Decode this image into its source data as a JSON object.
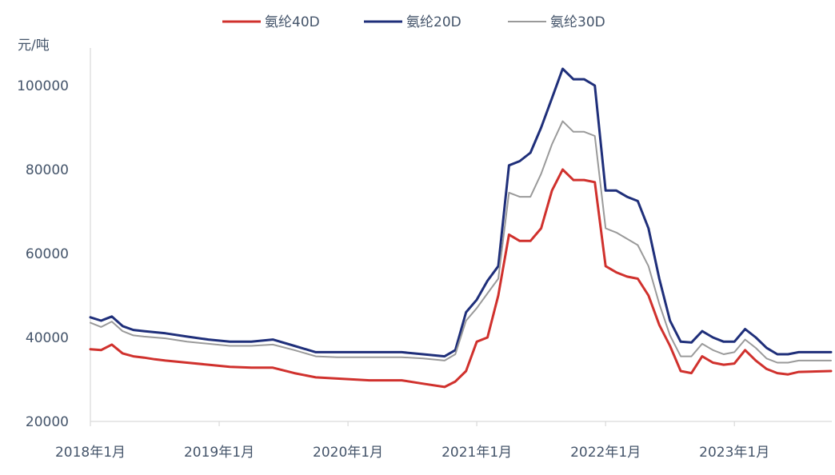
{
  "chart_data": {
    "type": "line",
    "title": "",
    "xlabel": "",
    "ylabel": "元/吨",
    "ylim": [
      20000,
      110000
    ],
    "xlim": [
      "2018-01",
      "2023-10"
    ],
    "y_ticks": [
      20000,
      40000,
      60000,
      80000,
      100000
    ],
    "y_tick_labels": [
      "20000",
      "40000",
      "60000",
      "80000",
      "100000"
    ],
    "x_ticks": [
      "2018-01",
      "2019-01",
      "2020-01",
      "2021-01",
      "2022-01",
      "2023-01"
    ],
    "x_tick_labels": [
      "2018年1月",
      "2019年1月",
      "2020年1月",
      "2021年1月",
      "2022年1月",
      "2023年1月"
    ],
    "grid": false,
    "legend_position": "top",
    "series": [
      {
        "name": "氨纶40D",
        "color": "#d0312d",
        "points": [
          [
            "2018-01",
            37200
          ],
          [
            "2018-02",
            37000
          ],
          [
            "2018-03",
            38300
          ],
          [
            "2018-04",
            36200
          ],
          [
            "2018-05",
            35500
          ],
          [
            "2018-06",
            35200
          ],
          [
            "2018-07",
            34800
          ],
          [
            "2018-08",
            34500
          ],
          [
            "2018-10",
            34000
          ],
          [
            "2018-12",
            33500
          ],
          [
            "2019-02",
            33000
          ],
          [
            "2019-04",
            32800
          ],
          [
            "2019-06",
            32800
          ],
          [
            "2019-08",
            31500
          ],
          [
            "2019-10",
            30500
          ],
          [
            "2019-12",
            30200
          ],
          [
            "2020-03",
            29800
          ],
          [
            "2020-06",
            29800
          ],
          [
            "2020-08",
            29000
          ],
          [
            "2020-10",
            28200
          ],
          [
            "2020-11",
            29500
          ],
          [
            "2020-12",
            32000
          ],
          [
            "2021-01",
            39000
          ],
          [
            "2021-02",
            40000
          ],
          [
            "2021-03",
            50000
          ],
          [
            "2021-04",
            64500
          ],
          [
            "2021-05",
            63000
          ],
          [
            "2021-06",
            63000
          ],
          [
            "2021-07",
            66000
          ],
          [
            "2021-08",
            75000
          ],
          [
            "2021-09",
            80000
          ],
          [
            "2021-10",
            77500
          ],
          [
            "2021-11",
            77500
          ],
          [
            "2021-12",
            77000
          ],
          [
            "2022-01",
            57000
          ],
          [
            "2022-02",
            55500
          ],
          [
            "2022-03",
            54500
          ],
          [
            "2022-04",
            54000
          ],
          [
            "2022-05",
            50000
          ],
          [
            "2022-06",
            43000
          ],
          [
            "2022-07",
            38000
          ],
          [
            "2022-08",
            32000
          ],
          [
            "2022-09",
            31500
          ],
          [
            "2022-10",
            35500
          ],
          [
            "2022-11",
            34000
          ],
          [
            "2022-12",
            33500
          ],
          [
            "2023-01",
            33800
          ],
          [
            "2023-02",
            37000
          ],
          [
            "2023-03",
            34500
          ],
          [
            "2023-04",
            32500
          ],
          [
            "2023-05",
            31500
          ],
          [
            "2023-06",
            31200
          ],
          [
            "2023-07",
            31800
          ],
          [
            "2023-10",
            32000
          ]
        ]
      },
      {
        "name": "氨纶20D",
        "color": "#1f2f7a",
        "points": [
          [
            "2018-01",
            44800
          ],
          [
            "2018-02",
            44000
          ],
          [
            "2018-03",
            45000
          ],
          [
            "2018-04",
            42700
          ],
          [
            "2018-05",
            41800
          ],
          [
            "2018-06",
            41500
          ],
          [
            "2018-08",
            41000
          ],
          [
            "2018-10",
            40200
          ],
          [
            "2018-12",
            39500
          ],
          [
            "2019-02",
            39000
          ],
          [
            "2019-04",
            39000
          ],
          [
            "2019-06",
            39500
          ],
          [
            "2019-08",
            38000
          ],
          [
            "2019-10",
            36500
          ],
          [
            "2019-12",
            36500
          ],
          [
            "2020-03",
            36500
          ],
          [
            "2020-06",
            36500
          ],
          [
            "2020-08",
            36000
          ],
          [
            "2020-10",
            35500
          ],
          [
            "2020-11",
            37000
          ],
          [
            "2020-12",
            46000
          ],
          [
            "2021-01",
            49000
          ],
          [
            "2021-02",
            53500
          ],
          [
            "2021-03",
            57000
          ],
          [
            "2021-04",
            81000
          ],
          [
            "2021-05",
            82000
          ],
          [
            "2021-06",
            84000
          ],
          [
            "2021-07",
            90000
          ],
          [
            "2021-08",
            97000
          ],
          [
            "2021-09",
            104000
          ],
          [
            "2021-10",
            101500
          ],
          [
            "2021-11",
            101500
          ],
          [
            "2021-12",
            100000
          ],
          [
            "2022-01",
            75000
          ],
          [
            "2022-02",
            75000
          ],
          [
            "2022-03",
            73500
          ],
          [
            "2022-04",
            72500
          ],
          [
            "2022-05",
            66000
          ],
          [
            "2022-06",
            54000
          ],
          [
            "2022-07",
            44000
          ],
          [
            "2022-08",
            39000
          ],
          [
            "2022-09",
            38800
          ],
          [
            "2022-10",
            41500
          ],
          [
            "2022-11",
            40000
          ],
          [
            "2022-12",
            39000
          ],
          [
            "2023-01",
            39000
          ],
          [
            "2023-02",
            42000
          ],
          [
            "2023-03",
            40000
          ],
          [
            "2023-04",
            37500
          ],
          [
            "2023-05",
            36000
          ],
          [
            "2023-06",
            36000
          ],
          [
            "2023-07",
            36500
          ],
          [
            "2023-10",
            36500
          ]
        ]
      },
      {
        "name": "氨纶30D",
        "color": "#9a9a9a",
        "points": [
          [
            "2018-01",
            43500
          ],
          [
            "2018-02",
            42500
          ],
          [
            "2018-03",
            43800
          ],
          [
            "2018-04",
            41500
          ],
          [
            "2018-05",
            40500
          ],
          [
            "2018-06",
            40200
          ],
          [
            "2018-08",
            39800
          ],
          [
            "2018-10",
            39000
          ],
          [
            "2018-12",
            38500
          ],
          [
            "2019-02",
            38000
          ],
          [
            "2019-04",
            38000
          ],
          [
            "2019-06",
            38300
          ],
          [
            "2019-08",
            37000
          ],
          [
            "2019-10",
            35500
          ],
          [
            "2019-12",
            35300
          ],
          [
            "2020-03",
            35300
          ],
          [
            "2020-06",
            35300
          ],
          [
            "2020-08",
            35000
          ],
          [
            "2020-10",
            34500
          ],
          [
            "2020-11",
            36000
          ],
          [
            "2020-12",
            44000
          ],
          [
            "2021-01",
            47000
          ],
          [
            "2021-02",
            50500
          ],
          [
            "2021-03",
            54000
          ],
          [
            "2021-04",
            74500
          ],
          [
            "2021-05",
            73500
          ],
          [
            "2021-06",
            73500
          ],
          [
            "2021-07",
            79000
          ],
          [
            "2021-08",
            86000
          ],
          [
            "2021-09",
            91500
          ],
          [
            "2021-10",
            89000
          ],
          [
            "2021-11",
            89000
          ],
          [
            "2021-12",
            88000
          ],
          [
            "2022-01",
            66000
          ],
          [
            "2022-02",
            65000
          ],
          [
            "2022-03",
            63500
          ],
          [
            "2022-04",
            62000
          ],
          [
            "2022-05",
            57000
          ],
          [
            "2022-06",
            48000
          ],
          [
            "2022-07",
            40500
          ],
          [
            "2022-08",
            35500
          ],
          [
            "2022-09",
            35500
          ],
          [
            "2022-10",
            38500
          ],
          [
            "2022-11",
            37000
          ],
          [
            "2022-12",
            36000
          ],
          [
            "2023-01",
            36500
          ],
          [
            "2023-02",
            39500
          ],
          [
            "2023-03",
            37500
          ],
          [
            "2023-04",
            35000
          ],
          [
            "2023-05",
            34000
          ],
          [
            "2023-06",
            34000
          ],
          [
            "2023-07",
            34500
          ],
          [
            "2023-10",
            34500
          ]
        ]
      }
    ]
  }
}
